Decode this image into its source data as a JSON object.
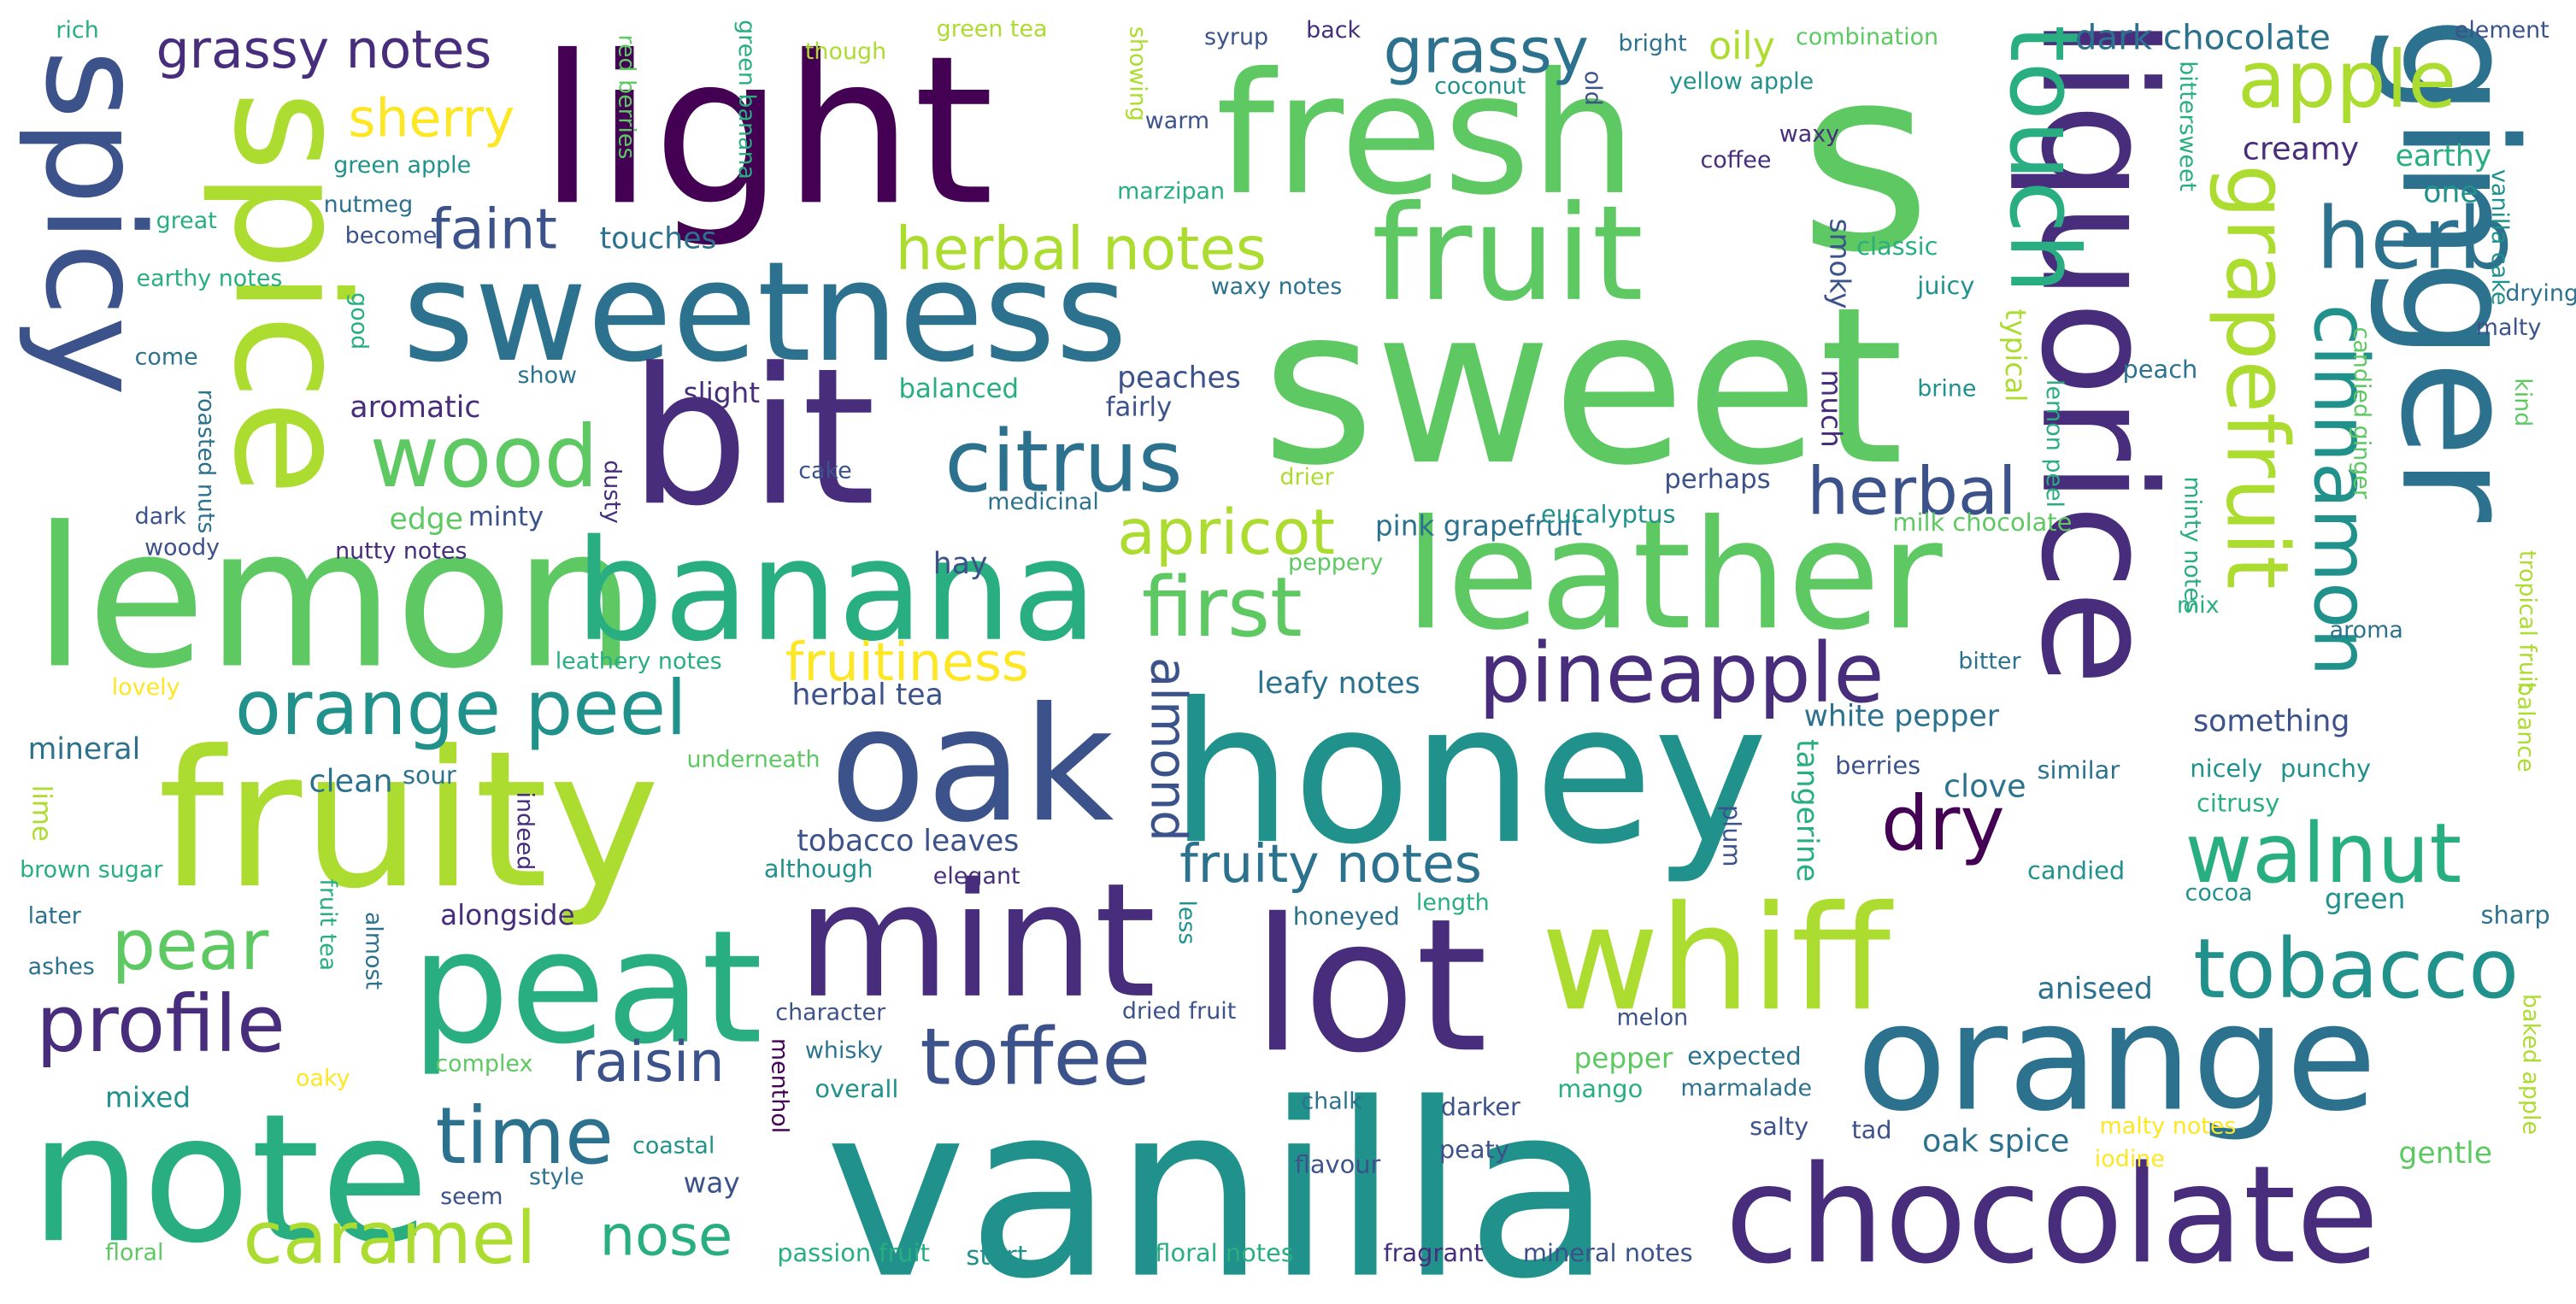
{
  "cloud": {
    "palette": [
      "#440154",
      "#472d7b",
      "#3b528b",
      "#2c728e",
      "#21918c",
      "#28ae80",
      "#5ec962",
      "#addc30",
      "#fde725"
    ],
    "words": [
      {
        "text": "sweet",
        "color": "#5ec962"
      },
      {
        "text": "s",
        "color": "#5ec962"
      },
      {
        "text": "light",
        "color": "#440154"
      },
      {
        "text": "vanilla",
        "color": "#21918c"
      },
      {
        "text": "honey",
        "color": "#21918c"
      },
      {
        "text": "fresh",
        "color": "#5ec962"
      },
      {
        "text": "liquorice",
        "color": "#472d7b"
      },
      {
        "text": "sweetness",
        "color": "#2c728e"
      },
      {
        "text": "bit",
        "color": "#472d7b"
      },
      {
        "text": "lemon",
        "color": "#5ec962"
      },
      {
        "text": "spice",
        "color": "#addc30"
      },
      {
        "text": "spicy",
        "color": "#3b528b"
      },
      {
        "text": "fruity",
        "color": "#addc30"
      },
      {
        "text": "banana",
        "color": "#28ae80"
      },
      {
        "text": "leather",
        "color": "#5ec962"
      },
      {
        "text": "ginger",
        "color": "#2c728e"
      },
      {
        "text": "orange",
        "color": "#2c728e"
      },
      {
        "text": "chocolate",
        "color": "#472d7b"
      },
      {
        "text": "lot",
        "color": "#472d7b"
      },
      {
        "text": "peat",
        "color": "#28ae80"
      },
      {
        "text": "note",
        "color": "#28ae80"
      },
      {
        "text": "oak",
        "color": "#3b528b"
      },
      {
        "text": "mint",
        "color": "#472d7b"
      },
      {
        "text": "whiff",
        "color": "#addc30"
      },
      {
        "text": "fruit",
        "color": "#5ec962"
      },
      {
        "text": "citrus",
        "color": "#2c728e"
      },
      {
        "text": "wood",
        "color": "#5ec962"
      },
      {
        "text": "apple",
        "color": "#addc30"
      },
      {
        "text": "herb",
        "color": "#2c728e"
      },
      {
        "text": "grapefruit",
        "color": "#addc30"
      },
      {
        "text": "touch",
        "color": "#28ae80"
      },
      {
        "text": "cinnamon",
        "color": "#21918c"
      },
      {
        "text": "pineapple",
        "color": "#472d7b"
      },
      {
        "text": "walnut",
        "color": "#28ae80"
      },
      {
        "text": "tobacco",
        "color": "#21918c"
      },
      {
        "text": "toffee",
        "color": "#3b528b"
      },
      {
        "text": "profile",
        "color": "#472d7b"
      },
      {
        "text": "caramel",
        "color": "#addc30"
      },
      {
        "text": "time",
        "color": "#2c728e"
      },
      {
        "text": "orange peel",
        "color": "#21918c"
      },
      {
        "text": "herbal",
        "color": "#3b528b"
      },
      {
        "text": "dry",
        "color": "#440154"
      },
      {
        "text": "first",
        "color": "#5ec962"
      },
      {
        "text": "apricot",
        "color": "#addc30"
      },
      {
        "text": "pear",
        "color": "#5ec962"
      },
      {
        "text": "grassy",
        "color": "#2c728e"
      },
      {
        "text": "grassy notes",
        "color": "#472d7b"
      },
      {
        "text": "herbal notes",
        "color": "#addc30"
      },
      {
        "text": "fruitiness",
        "color": "#fde725"
      },
      {
        "text": "fruity notes",
        "color": "#2c728e"
      },
      {
        "text": "raisin",
        "color": "#3b528b"
      },
      {
        "text": "almond",
        "color": "#3b528b"
      },
      {
        "text": "sherry",
        "color": "#fde725"
      },
      {
        "text": "faint",
        "color": "#3b528b"
      },
      {
        "text": "nose",
        "color": "#28ae80"
      },
      {
        "text": "dark chocolate",
        "color": "#2c728e"
      },
      {
        "text": "pink grapefruit",
        "color": "#2c728e"
      },
      {
        "text": "oily",
        "color": "#addc30"
      },
      {
        "text": "creamy",
        "color": "#472d7b"
      },
      {
        "text": "earthy",
        "color": "#28ae80"
      },
      {
        "text": "one",
        "color": "#21918c"
      },
      {
        "text": "touches",
        "color": "#2c728e"
      },
      {
        "text": "aromatic",
        "color": "#472d7b"
      },
      {
        "text": "peaches",
        "color": "#3b528b"
      },
      {
        "text": "hay",
        "color": "#3b528b"
      },
      {
        "text": "edge",
        "color": "#5ec962"
      },
      {
        "text": "minty",
        "color": "#3b528b"
      },
      {
        "text": "slight",
        "color": "#472d7b"
      },
      {
        "text": "balanced",
        "color": "#28ae80"
      },
      {
        "text": "fairly",
        "color": "#3b528b"
      },
      {
        "text": "perhaps",
        "color": "#3b528b"
      },
      {
        "text": "eucalyptus",
        "color": "#21918c"
      },
      {
        "text": "milk chocolate",
        "color": "#5ec962"
      },
      {
        "text": "much",
        "color": "#472d7b"
      },
      {
        "text": "smoky",
        "color": "#3b528b"
      },
      {
        "text": "classic",
        "color": "#28ae80"
      },
      {
        "text": "juicy",
        "color": "#21918c"
      },
      {
        "text": "typical",
        "color": "#addc30"
      },
      {
        "text": "lemon peel",
        "color": "#28ae80"
      },
      {
        "text": "brine",
        "color": "#21918c"
      },
      {
        "text": "peach",
        "color": "#2c728e"
      },
      {
        "text": "minty notes",
        "color": "#28ae80"
      },
      {
        "text": "mix",
        "color": "#28ae80"
      },
      {
        "text": "white pepper",
        "color": "#2c728e"
      },
      {
        "text": "something",
        "color": "#3b528b"
      },
      {
        "text": "leafy notes",
        "color": "#2c728e"
      },
      {
        "text": "herbal tea",
        "color": "#3b528b"
      },
      {
        "text": "clean",
        "color": "#2c728e"
      },
      {
        "text": "sour",
        "color": "#2c728e"
      },
      {
        "text": "tobacco leaves",
        "color": "#3b528b"
      },
      {
        "text": "clove",
        "color": "#2c728e"
      },
      {
        "text": "tangerine",
        "color": "#28ae80"
      },
      {
        "text": "berries",
        "color": "#3b528b"
      },
      {
        "text": "similar",
        "color": "#2c728e"
      },
      {
        "text": "nicely",
        "color": "#21918c"
      },
      {
        "text": "punchy",
        "color": "#21918c"
      },
      {
        "text": "citrusy",
        "color": "#28ae80"
      },
      {
        "text": "candied",
        "color": "#21918c"
      },
      {
        "text": "cocoa",
        "color": "#21918c"
      },
      {
        "text": "green",
        "color": "#21918c"
      },
      {
        "text": "sharp",
        "color": "#2c728e"
      },
      {
        "text": "aniseed",
        "color": "#2c728e"
      },
      {
        "text": "pepper",
        "color": "#5ec962"
      },
      {
        "text": "expected",
        "color": "#2c728e"
      },
      {
        "text": "mango",
        "color": "#28ae80"
      },
      {
        "text": "marmalade",
        "color": "#2c728e"
      },
      {
        "text": "oak spice",
        "color": "#2c728e"
      },
      {
        "text": "tad",
        "color": "#3b528b"
      },
      {
        "text": "salty",
        "color": "#3b528b"
      },
      {
        "text": "malty notes",
        "color": "#fde725"
      },
      {
        "text": "iodine",
        "color": "#fde725"
      },
      {
        "text": "gentle",
        "color": "#5ec962"
      },
      {
        "text": "baked apple",
        "color": "#addc30"
      },
      {
        "text": "floral notes",
        "color": "#28ae80"
      },
      {
        "text": "fragrant",
        "color": "#472d7b"
      },
      {
        "text": "mineral notes",
        "color": "#3b528b"
      },
      {
        "text": "passion fruit",
        "color": "#28ae80"
      },
      {
        "text": "start",
        "color": "#21918c"
      },
      {
        "text": "flavour",
        "color": "#3b528b"
      },
      {
        "text": "peaty",
        "color": "#3b528b"
      },
      {
        "text": "darker",
        "color": "#3b528b"
      },
      {
        "text": "chalk",
        "color": "#2c728e"
      },
      {
        "text": "overall",
        "color": "#21918c"
      },
      {
        "text": "whisky",
        "color": "#2c728e"
      },
      {
        "text": "character",
        "color": "#3b528b"
      },
      {
        "text": "dried fruit",
        "color": "#3b528b"
      },
      {
        "text": "melon",
        "color": "#3b528b"
      },
      {
        "text": "length",
        "color": "#28ae80"
      },
      {
        "text": "honeyed",
        "color": "#2c728e"
      },
      {
        "text": "less",
        "color": "#21918c"
      },
      {
        "text": "plum",
        "color": "#3b528b"
      },
      {
        "text": "menthol",
        "color": "#440154"
      },
      {
        "text": "way",
        "color": "#3b528b"
      },
      {
        "text": "coastal",
        "color": "#21918c"
      },
      {
        "text": "style",
        "color": "#2c728e"
      },
      {
        "text": "seem",
        "color": "#3b528b"
      },
      {
        "text": "complex",
        "color": "#5ec962"
      },
      {
        "text": "oaky",
        "color": "#fde725"
      },
      {
        "text": "mixed",
        "color": "#21918c"
      },
      {
        "text": "floral",
        "color": "#5ec962"
      },
      {
        "text": "alongside",
        "color": "#472d7b"
      },
      {
        "text": "although",
        "color": "#21918c"
      },
      {
        "text": "elegant",
        "color": "#472d7b"
      },
      {
        "text": "indeed",
        "color": "#472d7b"
      },
      {
        "text": "underneath",
        "color": "#5ec962"
      },
      {
        "text": "almost",
        "color": "#2c728e"
      },
      {
        "text": "fruit tea",
        "color": "#28ae80"
      },
      {
        "text": "lime",
        "color": "#addc30"
      },
      {
        "text": "brown sugar",
        "color": "#28ae80"
      },
      {
        "text": "later",
        "color": "#2c728e"
      },
      {
        "text": "ashes",
        "color": "#2c728e"
      },
      {
        "text": "mineral",
        "color": "#2c728e"
      },
      {
        "text": "lovely",
        "color": "#fde725"
      },
      {
        "text": "leathery notes",
        "color": "#28ae80"
      },
      {
        "text": "woody",
        "color": "#3b528b"
      },
      {
        "text": "dark",
        "color": "#3b528b"
      },
      {
        "text": "nutty notes",
        "color": "#472d7b"
      },
      {
        "text": "roasted nuts",
        "color": "#2c728e"
      },
      {
        "text": "show",
        "color": "#2c728e"
      },
      {
        "text": "come",
        "color": "#2c728e"
      },
      {
        "text": "good",
        "color": "#28ae80"
      },
      {
        "text": "become",
        "color": "#3b528b"
      },
      {
        "text": "earthy notes",
        "color": "#28ae80"
      },
      {
        "text": "great",
        "color": "#28ae80"
      },
      {
        "text": "nutmeg",
        "color": "#2c728e"
      },
      {
        "text": "green apple",
        "color": "#21918c"
      },
      {
        "text": "rich",
        "color": "#28ae80"
      },
      {
        "text": "red berries",
        "color": "#5ec962"
      },
      {
        "text": "green banana",
        "color": "#28ae80"
      },
      {
        "text": "though",
        "color": "#addc30"
      },
      {
        "text": "green tea",
        "color": "#addc30"
      },
      {
        "text": "showing",
        "color": "#addc30"
      },
      {
        "text": "warm",
        "color": "#3b528b"
      },
      {
        "text": "marzipan",
        "color": "#28ae80"
      },
      {
        "text": "syrup",
        "color": "#3b528b"
      },
      {
        "text": "back",
        "color": "#472d7b"
      },
      {
        "text": "coconut",
        "color": "#21918c"
      },
      {
        "text": "old",
        "color": "#3b528b"
      },
      {
        "text": "bright",
        "color": "#2c728e"
      },
      {
        "text": "yellow apple",
        "color": "#21918c"
      },
      {
        "text": "combination",
        "color": "#5ec962"
      },
      {
        "text": "waxy",
        "color": "#472d7b"
      },
      {
        "text": "coffee",
        "color": "#472d7b"
      },
      {
        "text": "bittersweet",
        "color": "#28ae80"
      },
      {
        "text": "element",
        "color": "#3b528b"
      },
      {
        "text": "vanilla cake",
        "color": "#21918c"
      },
      {
        "text": "drying",
        "color": "#2c728e"
      },
      {
        "text": "malty",
        "color": "#3b528b"
      },
      {
        "text": "kind",
        "color": "#5ec962"
      },
      {
        "text": "candied ginger",
        "color": "#5ec962"
      },
      {
        "text": "waxy notes",
        "color": "#2c728e"
      },
      {
        "text": "cake",
        "color": "#3b528b"
      },
      {
        "text": "drier",
        "color": "#addc30"
      },
      {
        "text": "medicinal",
        "color": "#2c728e"
      },
      {
        "text": "peppery",
        "color": "#5ec962"
      },
      {
        "text": "dusty",
        "color": "#472d7b"
      },
      {
        "text": "aroma",
        "color": "#2c728e"
      },
      {
        "text": "bitter",
        "color": "#2c728e"
      },
      {
        "text": "tropical fruit",
        "color": "#addc30"
      },
      {
        "text": "balance",
        "color": "#addc30"
      }
    ]
  }
}
